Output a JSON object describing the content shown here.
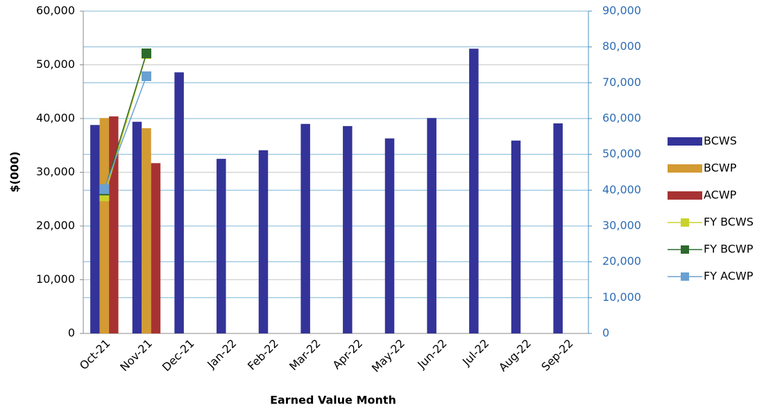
{
  "chart_data": {
    "type": "bar",
    "xlabel": "Earned Value Month",
    "ylabel": "$(000)",
    "categories": [
      "Oct-21",
      "Nov-21",
      "Dec-21",
      "Jan-22",
      "Feb-22",
      "Mar-22",
      "Apr-22",
      "May-22",
      "Jun-22",
      "Jul-22",
      "Aug-22",
      "Sep-22"
    ],
    "series": [
      {
        "name": "BCWS",
        "type": "bar",
        "color": "#333399",
        "values": [
          38800,
          39400,
          48600,
          32500,
          34100,
          39000,
          38600,
          36300,
          40100,
          53000,
          35900,
          39100
        ]
      },
      {
        "name": "BCWP",
        "type": "bar",
        "color": "#d39b33",
        "values": [
          40100,
          38200,
          null,
          null,
          null,
          null,
          null,
          null,
          null,
          null,
          null,
          null
        ]
      },
      {
        "name": "ACWP",
        "type": "bar",
        "color": "#a83232",
        "values": [
          40400,
          31700,
          null,
          null,
          null,
          null,
          null,
          null,
          null,
          null,
          null,
          null
        ]
      },
      {
        "name": "FY BCWS",
        "type": "line",
        "axis": "y2",
        "color": "#c8d22c",
        "values": [
          38300,
          78000,
          null,
          null,
          null,
          null,
          null,
          null,
          null,
          null,
          null,
          null
        ]
      },
      {
        "name": "FY BCWP",
        "type": "line",
        "axis": "y2",
        "color": "#2d6a2d",
        "values": [
          39900,
          78200,
          null,
          null,
          null,
          null,
          null,
          null,
          null,
          null,
          null,
          null
        ]
      },
      {
        "name": "FY ACWP",
        "type": "line",
        "axis": "y2",
        "color": "#6aa0d2",
        "values": [
          40300,
          71800,
          null,
          null,
          null,
          null,
          null,
          null,
          null,
          null,
          null,
          null
        ]
      }
    ],
    "ylim": [
      0,
      60000
    ],
    "yticks": [
      0,
      {
        "value": 10000,
        "label": "10,000"
      },
      {
        "value": 20000,
        "label": "20,000"
      },
      {
        "value": 30000,
        "label": "30,000"
      },
      {
        "value": 40000,
        "label": "40,000"
      },
      {
        "value": 50000,
        "label": "50,000"
      },
      {
        "value": 60000,
        "label": "60,000"
      }
    ],
    "y2lim": [
      0,
      90000
    ],
    "y2ticks": [
      0,
      {
        "value": 10000,
        "label": "10,000"
      },
      {
        "value": 20000,
        "label": "20,000"
      },
      {
        "value": 30000,
        "label": "30,000"
      },
      {
        "value": 40000,
        "label": "40,000"
      },
      {
        "value": 50000,
        "label": "50,000"
      },
      {
        "value": 60000,
        "label": "60,000"
      },
      {
        "value": 70000,
        "label": "70,000"
      },
      {
        "value": 80000,
        "label": "80,000"
      },
      {
        "value": 90000,
        "label": "90,000"
      }
    ],
    "grid": true,
    "legend": "right"
  }
}
